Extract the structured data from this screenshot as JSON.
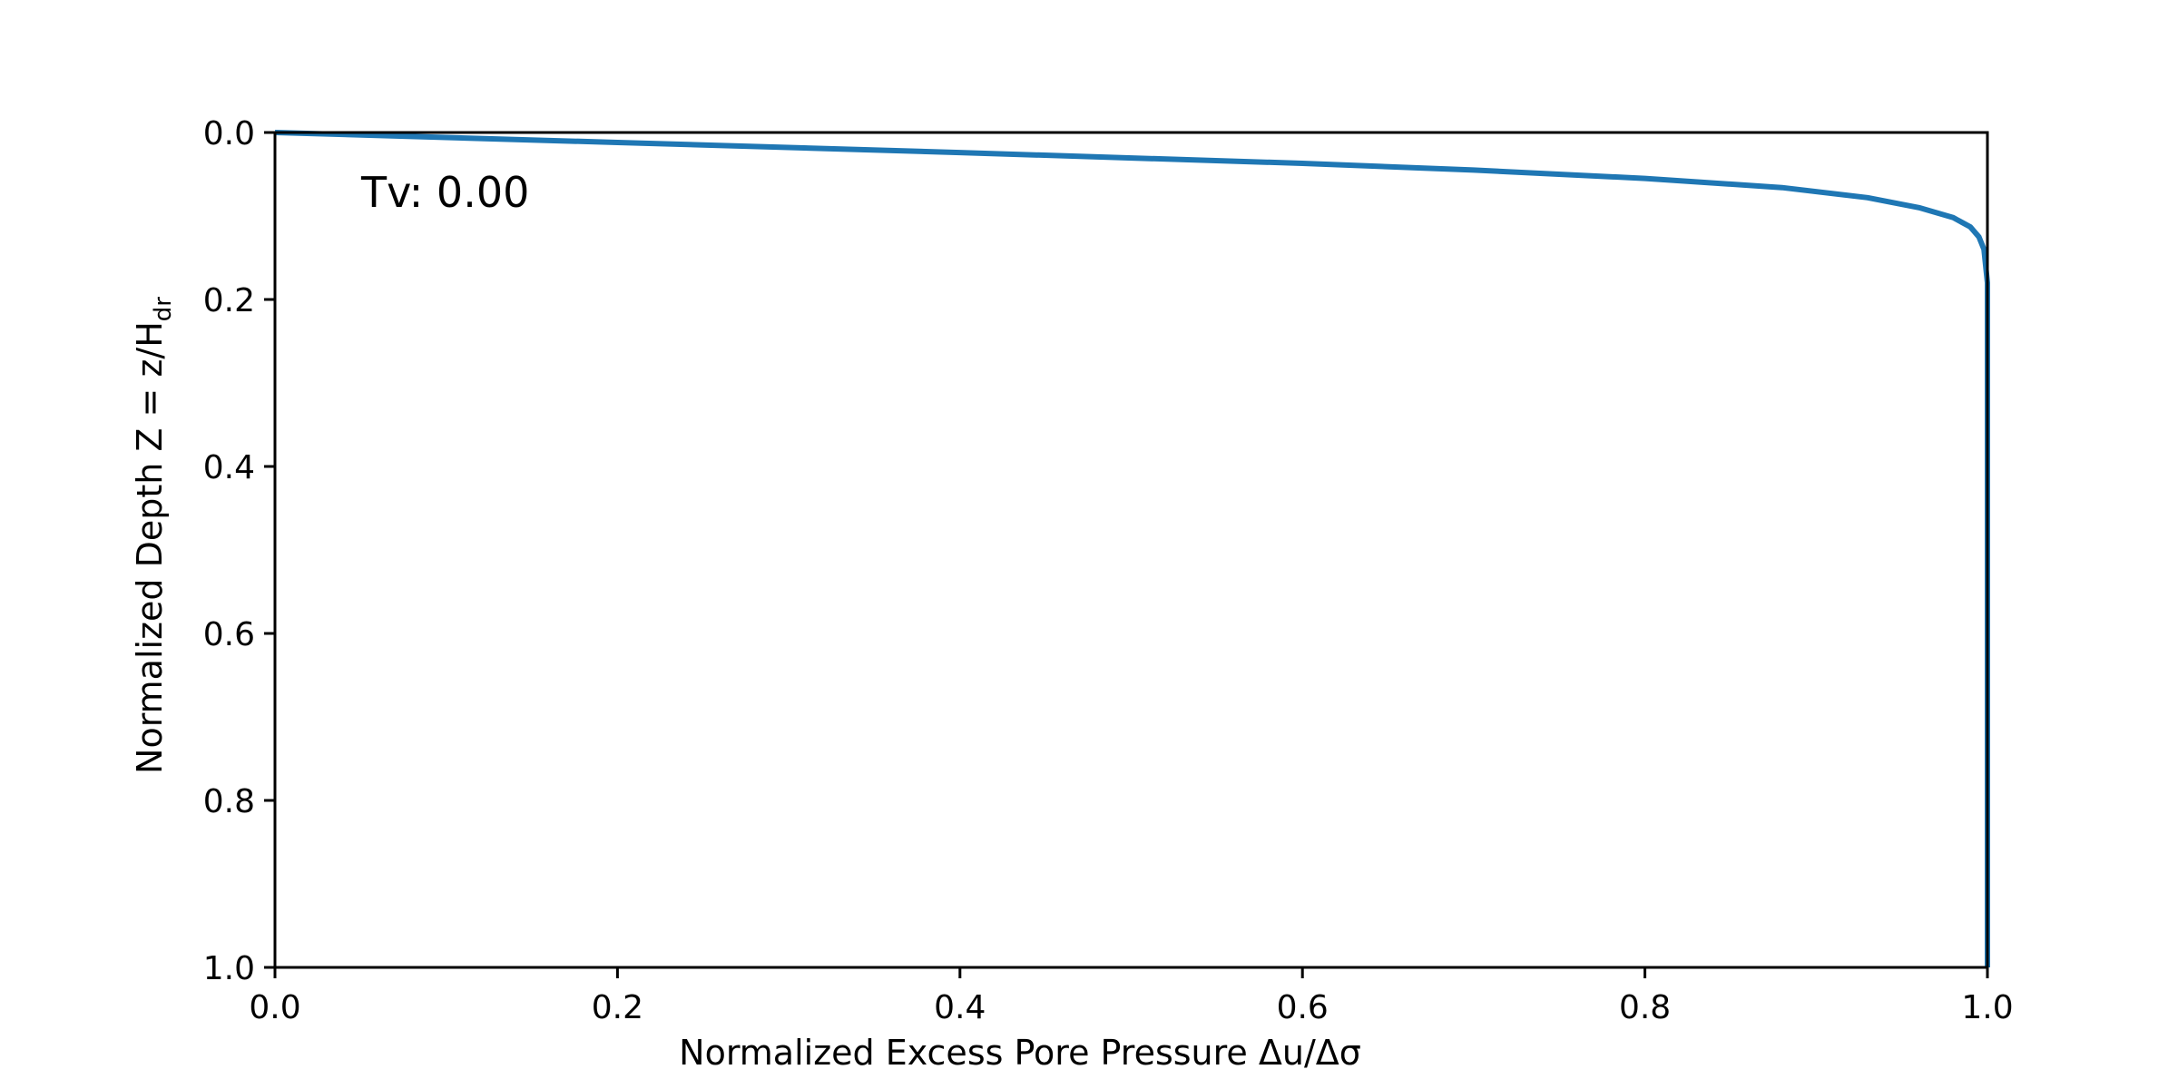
{
  "chart_data": {
    "type": "line",
    "title": "",
    "xlabel": "Normalized Excess Pore Pressure Δu/Δσ",
    "ylabel": "Normalized Depth Z = z/H",
    "ylabel_subscript": "dr",
    "xlim": [
      0.0,
      1.0
    ],
    "ylim": [
      1.0,
      0.0
    ],
    "y_inverted": true,
    "grid": false,
    "xticks": [
      "0.0",
      "0.2",
      "0.4",
      "0.6",
      "0.8",
      "1.0"
    ],
    "yticks": [
      "0.0",
      "0.2",
      "0.4",
      "0.6",
      "0.8",
      "1.0"
    ],
    "annotation": "Tv: 0.00",
    "series": [
      {
        "color": "#1f77b4",
        "x": [
          0.0,
          0.2,
          0.4,
          0.6,
          0.7,
          0.8,
          0.88,
          0.93,
          0.96,
          0.98,
          0.99,
          0.995,
          0.998,
          1.0,
          1.0,
          1.0,
          1.0,
          1.0
        ],
        "y": [
          0.0,
          0.012,
          0.024,
          0.037,
          0.045,
          0.055,
          0.066,
          0.078,
          0.09,
          0.102,
          0.113,
          0.125,
          0.14,
          0.18,
          0.3,
          0.5,
          0.8,
          1.0
        ]
      }
    ]
  }
}
